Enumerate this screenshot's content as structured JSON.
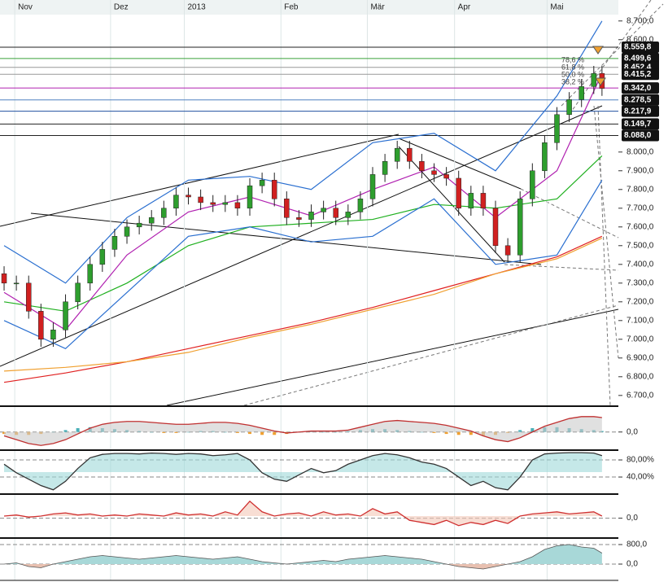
{
  "chart_data": [
    {
      "type": "candlestick",
      "x": [
        0,
        3,
        6,
        9,
        12,
        15,
        18,
        21,
        24,
        27,
        30,
        33,
        36,
        39,
        42,
        45,
        48,
        51,
        54,
        57,
        60,
        63,
        66,
        69,
        72,
        75,
        78,
        81,
        84,
        87,
        90,
        93,
        96,
        99,
        102,
        105,
        108,
        111,
        114,
        117,
        120,
        123,
        126,
        129,
        132,
        135,
        138,
        141,
        144,
        146
      ],
      "open": [
        7350,
        7300,
        7300,
        7150,
        7000,
        7050,
        7200,
        7300,
        7400,
        7480,
        7550,
        7600,
        7620,
        7650,
        7700,
        7770,
        7760,
        7730,
        7720,
        7730,
        7700,
        7820,
        7850,
        7750,
        7650,
        7640,
        7680,
        7700,
        7650,
        7680,
        7750,
        7880,
        7950,
        8020,
        7950,
        7900,
        7880,
        7860,
        7700,
        7780,
        7700,
        7500,
        7450,
        7750,
        7900,
        8050,
        8200,
        8280,
        8350,
        8420
      ],
      "high": [
        7390,
        7340,
        7340,
        7190,
        7090,
        7240,
        7340,
        7440,
        7520,
        7590,
        7640,
        7660,
        7690,
        7740,
        7810,
        7810,
        7800,
        7770,
        7770,
        7770,
        7860,
        7890,
        7890,
        7790,
        7690,
        7720,
        7740,
        7740,
        7720,
        7790,
        7920,
        7990,
        8060,
        8060,
        7990,
        7940,
        7920,
        7900,
        7820,
        7820,
        7740,
        7540,
        7790,
        7940,
        8090,
        8240,
        8320,
        8390,
        8460,
        8460
      ],
      "low": [
        7260,
        7260,
        7110,
        6960,
        6960,
        7010,
        7160,
        7260,
        7360,
        7440,
        7510,
        7560,
        7580,
        7610,
        7660,
        7720,
        7690,
        7680,
        7680,
        7660,
        7660,
        7780,
        7710,
        7610,
        7600,
        7600,
        7640,
        7610,
        7610,
        7640,
        7710,
        7840,
        7910,
        7910,
        7860,
        7840,
        7820,
        7660,
        7660,
        7660,
        7460,
        7410,
        7410,
        7710,
        7860,
        8010,
        8160,
        8240,
        8310,
        8300
      ],
      "close": [
        7300,
        7300,
        7150,
        7000,
        7050,
        7200,
        7300,
        7400,
        7480,
        7550,
        7600,
        7620,
        7650,
        7700,
        7770,
        7760,
        7730,
        7720,
        7730,
        7700,
        7820,
        7850,
        7750,
        7650,
        7640,
        7680,
        7700,
        7650,
        7680,
        7750,
        7880,
        7950,
        8020,
        7950,
        7900,
        7880,
        7860,
        7700,
        7780,
        7700,
        7500,
        7450,
        7750,
        7900,
        8050,
        8200,
        8280,
        8350,
        8420,
        8340
      ],
      "up_color": "#2e9e2e",
      "down_color": "#d02020",
      "xlim": [
        -1,
        150
      ],
      "ylim": [
        6647,
        8812
      ],
      "xticks": [
        {
          "value": 2.6,
          "label": "Nov"
        },
        {
          "value": 26,
          "label": "Dez"
        },
        {
          "value": 44,
          "label": "2013"
        },
        {
          "value": 67.6,
          "label": "Feb"
        },
        {
          "value": 88.7,
          "label": "Mär"
        },
        {
          "value": 110,
          "label": "Apr"
        },
        {
          "value": 132.6,
          "label": "Mai"
        }
      ],
      "yticks": [
        {
          "value": 8700,
          "label": "8.700,0"
        },
        {
          "value": 8600,
          "label": "8.600,0"
        },
        {
          "value": 8000,
          "label": "8.000,0"
        },
        {
          "value": 7900,
          "label": "7.900,0"
        },
        {
          "value": 7800,
          "label": "7.800,0"
        },
        {
          "value": 7700,
          "label": "7.700,0"
        },
        {
          "value": 7600,
          "label": "7.600,0"
        },
        {
          "value": 7500,
          "label": "7.500,0"
        },
        {
          "value": 7400,
          "label": "7.400,0"
        },
        {
          "value": 7300,
          "label": "7.300,0"
        },
        {
          "value": 7200,
          "label": "7.200,0"
        },
        {
          "value": 7100,
          "label": "7.100,0"
        },
        {
          "value": 7000,
          "label": "7.000,0"
        },
        {
          "value": 6900,
          "label": "6.900,0"
        },
        {
          "value": 6800,
          "label": "6.800,0"
        },
        {
          "value": 6700,
          "label": "6.700,0"
        }
      ],
      "grid": true,
      "lines": [
        {
          "color": "#e02020",
          "x": [
            0,
            15,
            30,
            45,
            60,
            75,
            90,
            105,
            120,
            135,
            146
          ],
          "values": [
            6770,
            6820,
            6880,
            6950,
            7020,
            7090,
            7170,
            7260,
            7350,
            7440,
            7550
          ]
        },
        {
          "color": "#f0a030",
          "x": [
            0,
            15,
            30,
            45,
            60,
            75,
            90,
            105,
            120,
            135,
            146
          ],
          "values": [
            6830,
            6850,
            6880,
            6930,
            7010,
            7080,
            7160,
            7240,
            7350,
            7430,
            7540
          ]
        },
        {
          "color": "#20b020",
          "x": [
            0,
            15,
            30,
            45,
            60,
            75,
            90,
            105,
            120,
            135,
            146
          ],
          "values": [
            7200,
            7150,
            7300,
            7500,
            7600,
            7620,
            7640,
            7720,
            7700,
            7750,
            7980
          ]
        },
        {
          "color": "#b020b0",
          "x": [
            0,
            15,
            30,
            45,
            60,
            75,
            90,
            105,
            120,
            135,
            146
          ],
          "values": [
            7250,
            7050,
            7450,
            7680,
            7760,
            7660,
            7800,
            7920,
            7650,
            7900,
            8420
          ]
        },
        {
          "color": "#2a6fd0",
          "x": [
            0,
            15,
            30,
            45,
            60,
            75,
            90,
            105,
            120,
            135,
            146
          ],
          "values": [
            7500,
            7300,
            7650,
            7850,
            7870,
            7800,
            8050,
            8100,
            7900,
            8300,
            8700
          ]
        },
        {
          "color": "#2a6fd0",
          "x": [
            0,
            15,
            30,
            45,
            60,
            75,
            90,
            105,
            120,
            135,
            146
          ],
          "values": [
            7100,
            6950,
            7250,
            7550,
            7600,
            7520,
            7550,
            7750,
            7400,
            7450,
            7850
          ]
        }
      ],
      "levels": [
        {
          "value": 8559.8,
          "label": "8.559,8",
          "color": "#222222"
        },
        {
          "value": 8499.6,
          "label": "8.499,6",
          "color": "#3aa03a"
        },
        {
          "value": 8452.4,
          "label": "8.452,4",
          "color": "#999999"
        },
        {
          "value": 8415.2,
          "label": "8.415,2",
          "color": "#999999"
        },
        {
          "value": 8342.0,
          "label": "8.342,0",
          "color": "#b020b0"
        },
        {
          "value": 8278.5,
          "label": "8.278,5",
          "color": "#5080c0"
        },
        {
          "value": 8217.9,
          "label": "8.217,9",
          "color": "#2050a0"
        },
        {
          "value": 8149.7,
          "label": "8.149,7",
          "color": "#222222"
        },
        {
          "value": 8088.0,
          "label": "8.088,0",
          "color": "#222222"
        }
      ],
      "fib_labels": [
        "78,6 %",
        "61,8 %",
        "50,0 %",
        "38,2 %"
      ]
    },
    {
      "type": "macd",
      "x": [
        0,
        3,
        6,
        9,
        12,
        15,
        18,
        21,
        24,
        27,
        30,
        33,
        36,
        39,
        42,
        45,
        48,
        51,
        54,
        57,
        60,
        63,
        66,
        69,
        72,
        75,
        78,
        81,
        84,
        87,
        90,
        93,
        96,
        99,
        102,
        105,
        108,
        111,
        114,
        117,
        120,
        123,
        126,
        129,
        132,
        135,
        138,
        141,
        144,
        146
      ],
      "values": [
        -0.2,
        -0.4,
        -0.6,
        -0.7,
        -0.6,
        -0.4,
        -0.1,
        0.2,
        0.4,
        0.5,
        0.55,
        0.55,
        0.5,
        0.45,
        0.4,
        0.4,
        0.45,
        0.5,
        0.5,
        0.45,
        0.35,
        0.2,
        0.05,
        -0.05,
        0,
        0.05,
        0.05,
        0.05,
        0.1,
        0.25,
        0.4,
        0.55,
        0.6,
        0.55,
        0.5,
        0.45,
        0.35,
        0.2,
        0.05,
        -0.2,
        -0.4,
        -0.5,
        -0.3,
        0,
        0.3,
        0.5,
        0.7,
        0.8,
        0.8,
        0.75
      ],
      "histogram": [
        -0.1,
        -0.15,
        -0.15,
        -0.1,
        0,
        0.1,
        0.2,
        0.25,
        0.2,
        0.15,
        0.1,
        0.05,
        0,
        -0.05,
        -0.05,
        0,
        0.05,
        0.05,
        0,
        -0.05,
        -0.1,
        -0.15,
        -0.15,
        -0.1,
        0,
        0.05,
        0,
        0,
        0.05,
        0.1,
        0.15,
        0.15,
        0.1,
        0.05,
        0,
        -0.05,
        -0.1,
        -0.15,
        -0.15,
        -0.2,
        -0.15,
        -0.05,
        0.1,
        0.2,
        0.25,
        0.25,
        0.2,
        0.15,
        0.1,
        0.05
      ],
      "color": "#c03030",
      "up_color": "#4ab0b8",
      "down_color": "#f0a030",
      "xlim": [
        -1,
        150
      ],
      "ylim": [
        -0.9,
        1.3
      ],
      "yticks": [
        {
          "value": 0,
          "label": "0,0"
        }
      ]
    },
    {
      "type": "line",
      "x": [
        0,
        3,
        6,
        9,
        12,
        15,
        18,
        21,
        24,
        27,
        30,
        33,
        36,
        39,
        42,
        45,
        48,
        51,
        54,
        57,
        60,
        63,
        66,
        69,
        72,
        75,
        78,
        81,
        84,
        87,
        90,
        93,
        96,
        99,
        102,
        105,
        108,
        111,
        114,
        117,
        120,
        123,
        126,
        129,
        132,
        135,
        138,
        141,
        144,
        146
      ],
      "values": [
        70,
        50,
        35,
        20,
        10,
        30,
        60,
        85,
        93,
        95,
        95,
        94,
        96,
        95,
        93,
        95,
        94,
        90,
        92,
        95,
        80,
        50,
        35,
        30,
        45,
        60,
        50,
        55,
        70,
        80,
        90,
        95,
        92,
        85,
        75,
        70,
        60,
        40,
        20,
        30,
        15,
        10,
        40,
        80,
        94,
        96,
        97,
        97,
        96,
        90
      ],
      "color": "#333333",
      "fill": "#9fd8d8",
      "xlim": [
        -1,
        150
      ],
      "ylim": [
        2,
        101
      ],
      "yticks": [
        {
          "value": 80,
          "label": "80,00%"
        },
        {
          "value": 40,
          "label": "40,00%"
        }
      ]
    },
    {
      "type": "line",
      "x": [
        0,
        3,
        6,
        9,
        12,
        15,
        18,
        21,
        24,
        27,
        30,
        33,
        36,
        39,
        42,
        45,
        48,
        51,
        54,
        57,
        60,
        63,
        66,
        69,
        72,
        75,
        78,
        81,
        84,
        87,
        90,
        93,
        96,
        99,
        102,
        105,
        108,
        111,
        114,
        117,
        120,
        123,
        126,
        129,
        132,
        135,
        138,
        141,
        144,
        146
      ],
      "values": [
        0.1,
        0.15,
        0.05,
        0.1,
        0.2,
        0.25,
        0.15,
        0.2,
        0.1,
        0.15,
        0.1,
        0.2,
        0.15,
        0.1,
        0.25,
        0.15,
        0.2,
        0.1,
        0.3,
        0.15,
        0.8,
        0.3,
        0.1,
        0.2,
        0.25,
        0.1,
        0.3,
        0.15,
        0.2,
        0.1,
        0.45,
        0.2,
        0.3,
        -0.1,
        -0.2,
        -0.3,
        -0.1,
        -0.35,
        -0.2,
        -0.3,
        -0.1,
        -0.25,
        0.1,
        0.2,
        0.25,
        0.3,
        0.2,
        0.25,
        0.3,
        0.1
      ],
      "color": "#d03030",
      "fill": "#f4c8b8",
      "xlim": [
        -1,
        150
      ],
      "ylim": [
        -0.9,
        1.1
      ],
      "yticks": [
        {
          "value": 0,
          "label": "0,0"
        }
      ]
    },
    {
      "type": "area",
      "x": [
        0,
        3,
        6,
        9,
        12,
        15,
        18,
        21,
        24,
        27,
        30,
        33,
        36,
        39,
        42,
        45,
        48,
        51,
        54,
        57,
        60,
        63,
        66,
        69,
        72,
        75,
        78,
        81,
        84,
        87,
        90,
        93,
        96,
        99,
        102,
        105,
        108,
        111,
        114,
        117,
        120,
        123,
        126,
        129,
        132,
        135,
        138,
        141,
        144,
        146
      ],
      "values": [
        0,
        50,
        -100,
        -150,
        0,
        100,
        200,
        300,
        350,
        300,
        250,
        200,
        250,
        300,
        350,
        300,
        250,
        200,
        250,
        300,
        200,
        100,
        50,
        0,
        50,
        100,
        150,
        100,
        200,
        250,
        300,
        350,
        300,
        250,
        200,
        100,
        0,
        -100,
        -150,
        -200,
        -100,
        0,
        100,
        300,
        600,
        750,
        800,
        700,
        650,
        450
      ],
      "color": "#555555",
      "fill": "#a8d8d8",
      "neg_fill": "#e8c0b0",
      "xlim": [
        -1,
        150
      ],
      "ylim": [
        -633,
        1033
      ],
      "yticks": [
        {
          "value": 800,
          "label": "800,0"
        },
        {
          "value": 0,
          "label": "0,0"
        }
      ]
    }
  ]
}
